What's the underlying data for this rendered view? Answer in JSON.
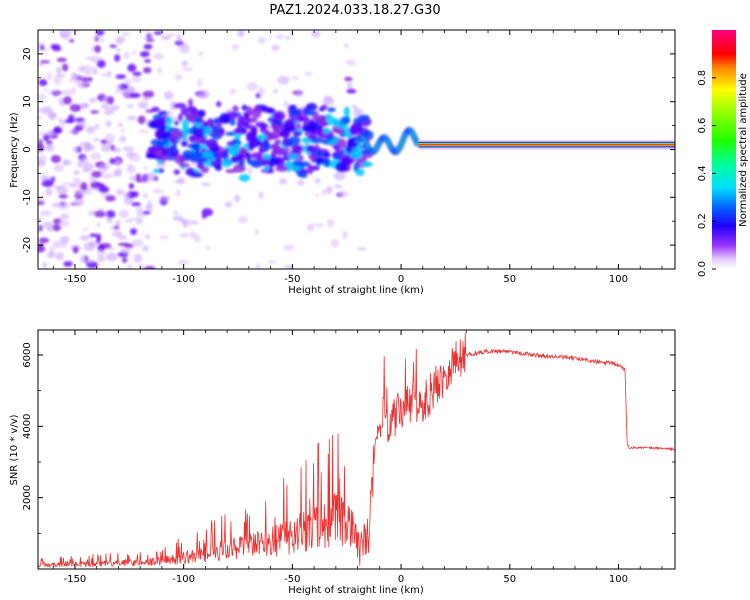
{
  "title": "PAZ1.2024.033.18.27.G30",
  "colors": {
    "snr_line": "#f03030",
    "axes": "#000000"
  },
  "chart_data": [
    {
      "type": "heatmap",
      "title": "",
      "xlabel": "Height of straight line (km)",
      "ylabel": "Frequency (Hz)",
      "xlim": [
        -167,
        126
      ],
      "ylim": [
        -25,
        25
      ],
      "xticks": [
        -150,
        -100,
        -50,
        0,
        50,
        100
      ],
      "yticks": [
        -20,
        -10,
        0,
        10,
        20
      ],
      "colormap": "gist_ncar-like (white, violet, blue, cyan, green, yellow, red, magenta)",
      "colorbar": {
        "label": "Normalized spectral amplitude",
        "range": [
          0,
          1
        ],
        "ticks": [
          "0.0",
          "0.2",
          "0.4",
          "0.6",
          "0.8"
        ]
      },
      "description_values": {
        "noise_region_x": [
          -167,
          -20
        ],
        "signal_line_frequency_hz": 1,
        "signal_line_start_km": 8,
        "transition_km": [
          -20,
          8
        ]
      }
    },
    {
      "type": "line",
      "title": "",
      "xlabel": "Height of straight line (km)",
      "ylabel": "SNR (10 * v/v)",
      "xlim": [
        -167,
        126
      ],
      "ylim": [
        0,
        6700
      ],
      "xticks": [
        -150,
        -100,
        -50,
        0,
        50,
        100
      ],
      "yticks": [
        2000,
        4000,
        6000
      ],
      "series": [
        {
          "x": [
            -167,
            -150,
            -130,
            -110,
            -100,
            -90,
            -80,
            -70,
            -60,
            -50,
            -40,
            -30,
            -22,
            -18,
            -15,
            -12,
            -10,
            -8,
            -5,
            0,
            5,
            10,
            15,
            20,
            25,
            30,
            35,
            40,
            50,
            60,
            70,
            80,
            90,
            98,
            100,
            103,
            104,
            105,
            110,
            120,
            126
          ],
          "values": [
            100,
            120,
            150,
            200,
            300,
            400,
            500,
            600,
            700,
            900,
            1100,
            1300,
            1000,
            500,
            900,
            3000,
            4000,
            4200,
            4000,
            4400,
            4600,
            4500,
            5000,
            5400,
            5800,
            6000,
            6050,
            6100,
            6100,
            6000,
            5950,
            5900,
            5800,
            5750,
            5700,
            5600,
            3500,
            3400,
            3400,
            3380,
            3350
          ]
        }
      ]
    }
  ]
}
